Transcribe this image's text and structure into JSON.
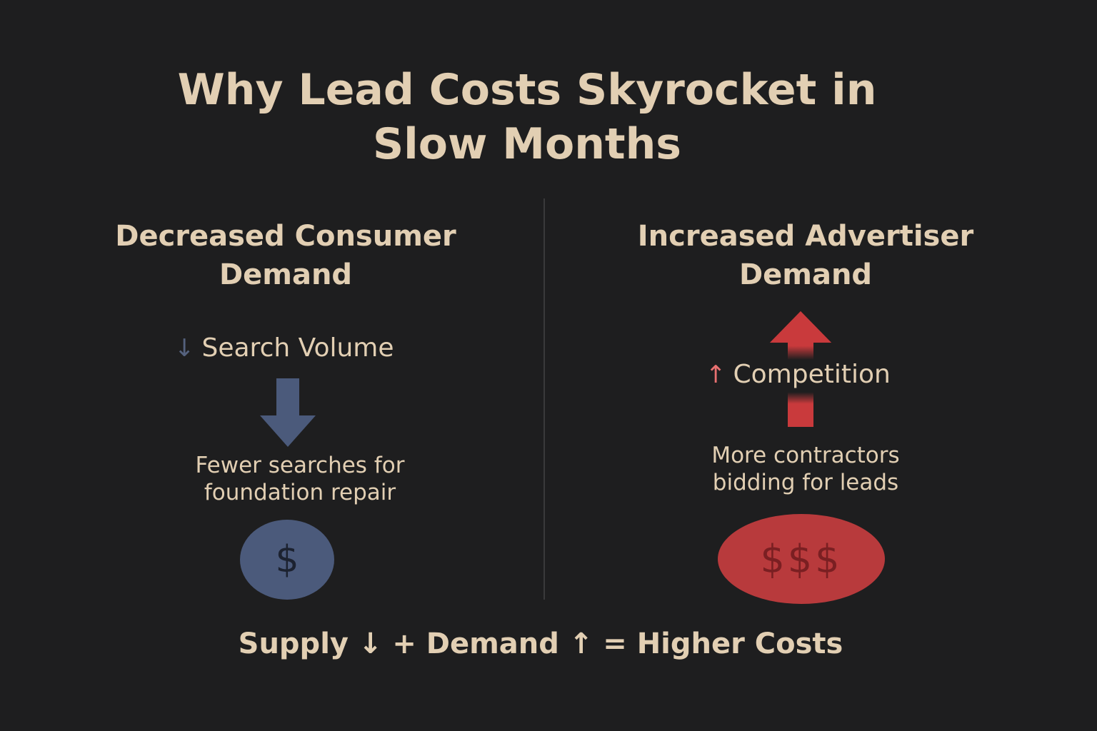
{
  "title": {
    "line1": "Why Lead Costs Skyrocket in",
    "line2": "Slow Months"
  },
  "left_panel": {
    "heading_line1": "Decreased Consumer",
    "heading_line2": "Demand",
    "metric_glyph": "↓",
    "metric_label": "Search Volume",
    "description_line1": "Fewer searches for",
    "description_line2": "foundation repair",
    "coin_label": "$",
    "arrow_icon": "down-arrow-icon",
    "color": "#4b5a7b"
  },
  "right_panel": {
    "heading_line1": "Increased Advertiser",
    "heading_line2": "Demand",
    "metric_glyph": "↑",
    "metric_label": "Competition",
    "description_line1": "More contractors",
    "description_line2": "bidding for leads",
    "coin_label": "$$$",
    "arrow_icon": "up-arrow-icon",
    "color": "#b83a3c"
  },
  "formula": "Supply ↓ + Demand ↑ = Higher Costs"
}
